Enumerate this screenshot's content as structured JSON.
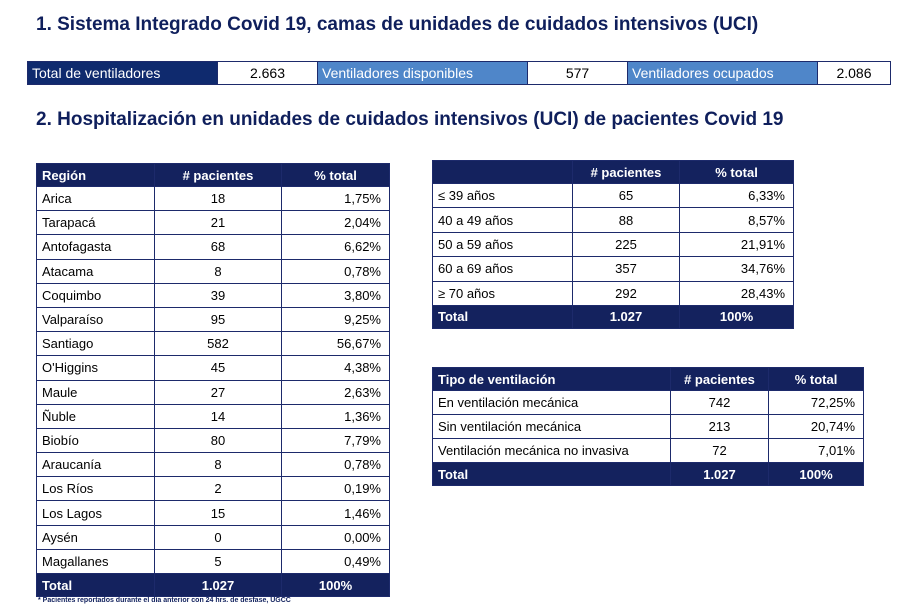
{
  "section1": {
    "title": "1. Sistema Integrado Covid 19, camas de unidades de cuidados intensivos (UCI)",
    "total_label": "Total de ventiladores",
    "total_value": "2.663",
    "available_label": "Ventiladores disponibles",
    "available_value": "577",
    "occupied_label": "Ventiladores ocupados",
    "occupied_value": "2.086"
  },
  "section2": {
    "title": "2. Hospitalización en unidades de cuidados intensivos (UCI) de pacientes Covid 19"
  },
  "region_table": {
    "headers": [
      "Región",
      "# pacientes",
      "% total"
    ],
    "rows": [
      [
        "Arica",
        "18",
        "1,75%"
      ],
      [
        "Tarapacá",
        "21",
        "2,04%"
      ],
      [
        "Antofagasta",
        "68",
        "6,62%"
      ],
      [
        "Atacama",
        "8",
        "0,78%"
      ],
      [
        "Coquimbo",
        "39",
        "3,80%"
      ],
      [
        "Valparaíso",
        "95",
        "9,25%"
      ],
      [
        "Santiago",
        "582",
        "56,67%"
      ],
      [
        "O'Higgins",
        "45",
        "4,38%"
      ],
      [
        "Maule",
        "27",
        "2,63%"
      ],
      [
        "Ñuble",
        "14",
        "1,36%"
      ],
      [
        "Biobío",
        "80",
        "7,79%"
      ],
      [
        "Araucanía",
        "8",
        "0,78%"
      ],
      [
        "Los Ríos",
        "2",
        "0,19%"
      ],
      [
        "Los Lagos",
        "15",
        "1,46%"
      ],
      [
        "Aysén",
        "0",
        "0,00%"
      ],
      [
        "Magallanes",
        "5",
        "0,49%"
      ]
    ],
    "total": [
      "Total",
      "1.027",
      "100%"
    ]
  },
  "age_table": {
    "headers": [
      "",
      "# pacientes",
      "% total"
    ],
    "rows": [
      [
        "≤ 39 años",
        "65",
        "6,33%"
      ],
      [
        "40 a 49 años",
        "88",
        "8,57%"
      ],
      [
        "50 a 59 años",
        "225",
        "21,91%"
      ],
      [
        "60 a 69 años",
        "357",
        "34,76%"
      ],
      [
        "≥ 70 años",
        "292",
        "28,43%"
      ]
    ],
    "total": [
      "Total",
      "1.027",
      "100%"
    ]
  },
  "vent_table": {
    "headers": [
      "Tipo de ventilación",
      "# pacientes",
      "% total"
    ],
    "rows": [
      [
        "En ventilación mecánica",
        "742",
        "72,25%"
      ],
      [
        "Sin ventilación mecánica",
        "213",
        "20,74%"
      ],
      [
        "Ventilación mecánica no invasiva",
        "72",
        "7,01%"
      ]
    ],
    "total": [
      "Total",
      "1.027",
      "100%"
    ]
  },
  "footnote": "* Pacientes reportados durante el día anterior con 24 hrs. de desfase, UGCC",
  "colors": {
    "dark_navy": "#14225e",
    "label_blue": "#4f86c9",
    "title_navy": "#0f1f5c"
  }
}
